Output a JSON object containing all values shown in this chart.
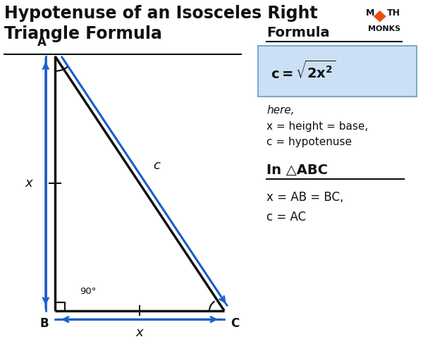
{
  "title_line1": "Hypotenuse of an Isosceles Right",
  "title_line2": "Triangle Formula",
  "title_fontsize": 17,
  "bg_color": "#ffffff",
  "tri_A": [
    0.13,
    0.84
  ],
  "tri_B": [
    0.13,
    0.115
  ],
  "tri_C": [
    0.53,
    0.115
  ],
  "black": "#111111",
  "blue": "#1a5fcc",
  "tri_lw": 2.5,
  "arrow_lw": 2.0,
  "sq_size": 0.023,
  "label_A": "A",
  "label_B": "B",
  "label_C": "C",
  "label_x_vert": "x",
  "label_x_horiz": "x",
  "label_c": "c",
  "label_90": "90°",
  "formula_title": "Formula",
  "formula_box_fc": "#cce0f5",
  "formula_box_ec": "#7aaad0",
  "here_str": "here,",
  "desc1": "x = height = base,",
  "desc2": "c = hypotenuse",
  "in_abc": "In △ABC",
  "abc1": "x = AB = BC,",
  "abc2": "c = AC",
  "orange": "#e8520a"
}
